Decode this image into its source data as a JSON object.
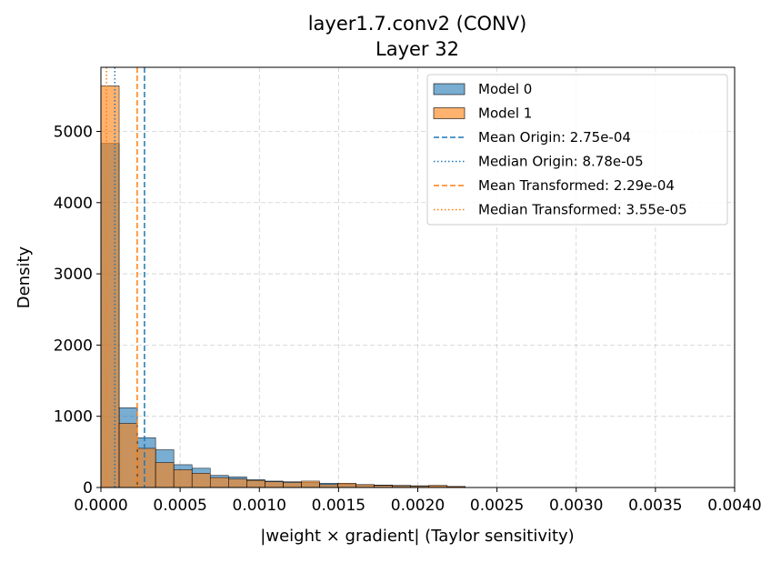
{
  "chart_data": {
    "type": "histogram",
    "title": "layer1.7.conv2 (CONV)",
    "subtitle": "Layer 32",
    "xlabel": "|weight × gradient| (Taylor sensitivity)",
    "ylabel": "Density",
    "xlim": [
      0,
      0.004
    ],
    "ylim": [
      0,
      5900
    ],
    "xticks": [
      0,
      0.0005,
      0.001,
      0.0015,
      0.002,
      0.0025,
      0.003,
      0.0035,
      0.004
    ],
    "xtick_labels": [
      "0.0000",
      "0.0005",
      "0.0010",
      "0.0015",
      "0.0020",
      "0.0025",
      "0.0030",
      "0.0035",
      "0.0040"
    ],
    "yticks": [
      0,
      1000,
      2000,
      3000,
      4000,
      5000
    ],
    "ytick_labels": [
      "0",
      "1000",
      "2000",
      "3000",
      "4000",
      "5000"
    ],
    "grid": true,
    "legend_position": "top-right",
    "bin_edges": [
      0,
      0.000115,
      0.00023,
      0.000345,
      0.00046,
      0.000575,
      0.00069,
      0.000805,
      0.00092,
      0.001035,
      0.00115,
      0.001265,
      0.00138,
      0.001495,
      0.00161,
      0.001725,
      0.00184,
      0.001955,
      0.00207,
      0.002185,
      0.0023
    ],
    "series": [
      {
        "name": "Model 0",
        "color": "#1f77b4",
        "values": [
          4830,
          1120,
          700,
          530,
          320,
          270,
          170,
          150,
          110,
          90,
          80,
          70,
          60,
          50,
          40,
          35,
          30,
          25,
          20,
          10
        ]
      },
      {
        "name": "Model 1",
        "color": "#ff7f0e",
        "values": [
          5640,
          900,
          550,
          350,
          250,
          200,
          140,
          120,
          100,
          80,
          70,
          90,
          40,
          60,
          40,
          30,
          25,
          20,
          30,
          15
        ]
      }
    ],
    "reference_lines": [
      {
        "label": "Mean Origin: 2.75e-04",
        "x": 0.000275,
        "color": "#1f77b4",
        "style": "dashed"
      },
      {
        "label": "Median Origin: 8.78e-05",
        "x": 8.78e-05,
        "color": "#1f77b4",
        "style": "dotted"
      },
      {
        "label": "Mean Transformed: 2.29e-04",
        "x": 0.000229,
        "color": "#ff7f0e",
        "style": "dashed"
      },
      {
        "label": "Median Transformed: 3.55e-05",
        "x": 3.55e-05,
        "color": "#ff7f0e",
        "style": "dotted"
      }
    ]
  }
}
